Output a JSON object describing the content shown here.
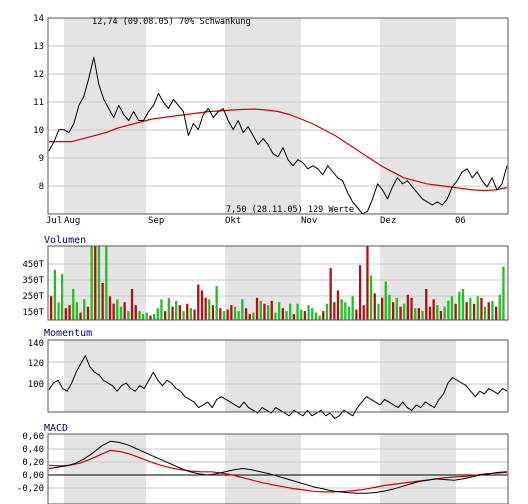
{
  "colors": {
    "price": "#000000",
    "average": "#d40000",
    "volume_up": "#20c020",
    "volume_down": "#b01010",
    "band": "#e4e4e4",
    "grid": "#c8c8c8",
    "frame": "#555555",
    "title": "#000066",
    "macd_signal": "#d40000"
  },
  "chart_data": [
    {
      "type": "line",
      "panel": "price",
      "annotations": {
        "high": "12,74 (09.08.05) 70% Schwankung",
        "low": "7,50 (28.11.05) 129 Werte"
      },
      "x_labels": [
        "Jul",
        "Aug",
        "Sep",
        "Okt",
        "Nov",
        "Dez",
        "06"
      ],
      "y_ticks": [
        "14",
        "13",
        "12",
        "11",
        "10",
        "9",
        "8"
      ],
      "ylim": [
        7.5,
        14
      ],
      "grid": true,
      "series": [
        {
          "values": [
            9.6,
            9.9,
            10.3,
            10.3,
            10.2,
            10.5,
            11.1,
            11.4,
            12.0,
            12.7,
            11.8,
            11.3,
            11.0,
            10.7,
            11.1,
            10.8,
            10.6,
            10.9,
            10.6,
            10.6,
            10.9,
            11.1,
            11.5,
            11.2,
            11.0,
            11.3,
            11.1,
            10.9,
            10.1,
            10.5,
            10.3,
            10.8,
            11.0,
            10.7,
            10.9,
            11.0,
            10.6,
            10.3,
            10.6,
            10.2,
            10.4,
            10.1,
            9.8,
            10.0,
            9.8,
            9.5,
            9.4,
            9.7,
            9.3,
            9.1,
            9.3,
            9.2,
            9.0,
            9.1,
            9.0,
            8.8,
            9.1,
            8.9,
            8.7,
            8.6,
            8.2,
            7.9,
            7.7,
            7.5,
            7.6,
            8.0,
            8.5,
            8.3,
            8.0,
            8.4,
            8.7,
            8.5,
            8.6,
            8.4,
            8.2,
            8.0,
            7.9,
            7.8,
            7.9,
            7.8,
            8.0,
            8.4,
            8.6,
            8.9,
            9.0,
            8.7,
            8.9,
            8.6,
            8.4,
            8.7,
            8.3,
            8.5,
            9.1
          ]
        },
        {
          "values": [
            9.9,
            9.9,
            9.9,
            10.0,
            10.1,
            10.2,
            10.35,
            10.45,
            10.55,
            10.65,
            10.7,
            10.75,
            10.8,
            10.85,
            10.9,
            10.92,
            10.95,
            10.97,
            10.98,
            10.95,
            10.9,
            10.8,
            10.65,
            10.5,
            10.3,
            10.1,
            9.85,
            9.6,
            9.35,
            9.1,
            8.9,
            8.7,
            8.6,
            8.5,
            8.45,
            8.4,
            8.35,
            8.3,
            8.28,
            8.3,
            8.38
          ]
        }
      ]
    },
    {
      "type": "bar",
      "panel": "volume",
      "title": "Volumen",
      "y_ticks": [
        "450T",
        "350T",
        "250T",
        "150T"
      ],
      "ylim": [
        0,
        500
      ],
      "bars": [
        {
          "v": 160,
          "c": "down"
        },
        {
          "v": 340,
          "c": "up"
        },
        {
          "v": 120,
          "c": "up"
        },
        {
          "v": 310,
          "c": "up"
        },
        {
          "v": 80,
          "c": "down"
        },
        {
          "v": 100,
          "c": "down"
        },
        {
          "v": 210,
          "c": "up"
        },
        {
          "v": 120,
          "c": "up"
        },
        {
          "v": 50,
          "c": "down"
        },
        {
          "v": 140,
          "c": "up"
        },
        {
          "v": 90,
          "c": "down"
        },
        {
          "v": 500,
          "c": "up"
        },
        {
          "v": 500,
          "c": "down"
        },
        {
          "v": 500,
          "c": "up"
        },
        {
          "v": 250,
          "c": "down"
        },
        {
          "v": 500,
          "c": "up"
        },
        {
          "v": 160,
          "c": "down"
        },
        {
          "v": 110,
          "c": "down"
        },
        {
          "v": 140,
          "c": "up"
        },
        {
          "v": 90,
          "c": "up"
        },
        {
          "v": 120,
          "c": "down"
        },
        {
          "v": 60,
          "c": "up"
        },
        {
          "v": 210,
          "c": "down"
        },
        {
          "v": 100,
          "c": "down"
        },
        {
          "v": 60,
          "c": "up"
        },
        {
          "v": 40,
          "c": "up"
        },
        {
          "v": 50,
          "c": "up"
        },
        {
          "v": 30,
          "c": "down"
        },
        {
          "v": 40,
          "c": "up"
        },
        {
          "v": 80,
          "c": "up"
        },
        {
          "v": 140,
          "c": "up"
        },
        {
          "v": 60,
          "c": "down"
        },
        {
          "v": 150,
          "c": "up"
        },
        {
          "v": 90,
          "c": "down"
        },
        {
          "v": 130,
          "c": "up"
        },
        {
          "v": 100,
          "c": "down"
        },
        {
          "v": 60,
          "c": "up"
        },
        {
          "v": 110,
          "c": "down"
        },
        {
          "v": 80,
          "c": "up"
        },
        {
          "v": 70,
          "c": "down"
        },
        {
          "v": 240,
          "c": "down"
        },
        {
          "v": 200,
          "c": "down"
        },
        {
          "v": 150,
          "c": "down"
        },
        {
          "v": 140,
          "c": "up"
        },
        {
          "v": 100,
          "c": "down"
        },
        {
          "v": 230,
          "c": "up"
        },
        {
          "v": 80,
          "c": "down"
        },
        {
          "v": 60,
          "c": "up"
        },
        {
          "v": 70,
          "c": "down"
        },
        {
          "v": 100,
          "c": "down"
        },
        {
          "v": 90,
          "c": "up"
        },
        {
          "v": 60,
          "c": "up"
        },
        {
          "v": 140,
          "c": "up"
        },
        {
          "v": 80,
          "c": "down"
        },
        {
          "v": 40,
          "c": "down"
        },
        {
          "v": 50,
          "c": "up"
        },
        {
          "v": 150,
          "c": "down"
        },
        {
          "v": 130,
          "c": "up"
        },
        {
          "v": 110,
          "c": "down"
        },
        {
          "v": 100,
          "c": "up"
        },
        {
          "v": 130,
          "c": "down"
        },
        {
          "v": 50,
          "c": "up"
        },
        {
          "v": 120,
          "c": "up"
        },
        {
          "v": 80,
          "c": "down"
        },
        {
          "v": 60,
          "c": "up"
        },
        {
          "v": 110,
          "c": "up"
        },
        {
          "v": 40,
          "c": "down"
        },
        {
          "v": 110,
          "c": "up"
        },
        {
          "v": 70,
          "c": "up"
        },
        {
          "v": 60,
          "c": "down"
        },
        {
          "v": 100,
          "c": "up"
        },
        {
          "v": 80,
          "c": "up"
        },
        {
          "v": 50,
          "c": "up"
        },
        {
          "v": 30,
          "c": "up"
        },
        {
          "v": 60,
          "c": "down"
        },
        {
          "v": 110,
          "c": "up"
        },
        {
          "v": 350,
          "c": "down"
        },
        {
          "v": 120,
          "c": "down"
        },
        {
          "v": 200,
          "c": "down"
        },
        {
          "v": 140,
          "c": "up"
        },
        {
          "v": 120,
          "c": "up"
        },
        {
          "v": 90,
          "c": "up"
        },
        {
          "v": 160,
          "c": "up"
        },
        {
          "v": 70,
          "c": "down"
        },
        {
          "v": 370,
          "c": "down"
        },
        {
          "v": 100,
          "c": "down"
        },
        {
          "v": 500,
          "c": "down"
        },
        {
          "v": 300,
          "c": "up"
        },
        {
          "v": 180,
          "c": "down"
        },
        {
          "v": 110,
          "c": "up"
        },
        {
          "v": 150,
          "c": "down"
        },
        {
          "v": 260,
          "c": "up"
        },
        {
          "v": 170,
          "c": "up"
        },
        {
          "v": 120,
          "c": "down"
        },
        {
          "v": 150,
          "c": "up"
        },
        {
          "v": 90,
          "c": "down"
        },
        {
          "v": 110,
          "c": "up"
        },
        {
          "v": 170,
          "c": "down"
        },
        {
          "v": 150,
          "c": "down"
        },
        {
          "v": 80,
          "c": "up"
        },
        {
          "v": 80,
          "c": "down"
        },
        {
          "v": 60,
          "c": "up"
        },
        {
          "v": 210,
          "c": "down"
        },
        {
          "v": 90,
          "c": "down"
        },
        {
          "v": 140,
          "c": "down"
        },
        {
          "v": 100,
          "c": "up"
        },
        {
          "v": 60,
          "c": "down"
        },
        {
          "v": 90,
          "c": "up"
        },
        {
          "v": 130,
          "c": "up"
        },
        {
          "v": 160,
          "c": "up"
        },
        {
          "v": 110,
          "c": "down"
        },
        {
          "v": 190,
          "c": "up"
        },
        {
          "v": 210,
          "c": "up"
        },
        {
          "v": 120,
          "c": "down"
        },
        {
          "v": 150,
          "c": "up"
        },
        {
          "v": 110,
          "c": "down"
        },
        {
          "v": 160,
          "c": "up"
        },
        {
          "v": 150,
          "c": "down"
        },
        {
          "v": 90,
          "c": "up"
        },
        {
          "v": 120,
          "c": "down"
        },
        {
          "v": 130,
          "c": "up"
        },
        {
          "v": 90,
          "c": "down"
        },
        {
          "v": 170,
          "c": "up"
        },
        {
          "v": 360,
          "c": "up"
        }
      ]
    },
    {
      "type": "line",
      "panel": "momentum",
      "title": "Momentum",
      "y_ticks": [
        "140",
        "120",
        "100"
      ],
      "ylim": [
        80,
        140
      ],
      "grid": true,
      "series": [
        {
          "values": [
            105,
            110,
            112,
            106,
            104,
            110,
            118,
            124,
            130,
            122,
            118,
            116,
            112,
            110,
            108,
            104,
            108,
            110,
            106,
            104,
            108,
            106,
            112,
            118,
            112,
            108,
            112,
            110,
            106,
            104,
            100,
            98,
            96,
            92,
            94,
            96,
            92,
            98,
            100,
            98,
            96,
            94,
            92,
            96,
            92,
            90,
            88,
            92,
            90,
            88,
            92,
            90,
            88,
            86,
            90,
            88,
            86,
            90,
            86,
            88,
            90,
            86,
            88,
            84,
            86,
            90,
            88,
            86,
            92,
            96,
            100,
            98,
            96,
            94,
            98,
            96,
            94,
            92,
            96,
            92,
            90,
            94,
            92,
            96,
            94,
            92,
            98,
            102,
            110,
            114,
            112,
            110,
            108,
            104,
            100,
            104,
            102,
            106,
            104,
            102,
            106,
            104
          ]
        }
      ]
    },
    {
      "type": "line",
      "panel": "macd",
      "title": "MACD",
      "y_ticks": [
        "0,60",
        "0,40",
        "0,20",
        "0,00",
        "-0,20"
      ],
      "ylim": [
        -0.3,
        0.65
      ],
      "grid": true,
      "series": [
        {
          "values": [
            0.1,
            0.12,
            0.14,
            0.18,
            0.25,
            0.34,
            0.45,
            0.52,
            0.5,
            0.46,
            0.4,
            0.34,
            0.28,
            0.22,
            0.16,
            0.1,
            0.05,
            0.02,
            0.0,
            0.02,
            0.05,
            0.08,
            0.1,
            0.08,
            0.05,
            0.02,
            -0.02,
            -0.06,
            -0.1,
            -0.14,
            -0.18,
            -0.21,
            -0.24,
            -0.26,
            -0.27,
            -0.28,
            -0.28,
            -0.27,
            -0.25,
            -0.22,
            -0.18,
            -0.14,
            -0.1,
            -0.08,
            -0.06,
            -0.07,
            -0.08,
            -0.06,
            -0.03,
            0.0,
            0.02,
            0.04,
            0.05
          ]
        },
        {
          "values": [
            0.15,
            0.14,
            0.15,
            0.18,
            0.24,
            0.31,
            0.38,
            0.36,
            0.32,
            0.26,
            0.2,
            0.15,
            0.11,
            0.08,
            0.06,
            0.05,
            0.05,
            0.03,
            0.0,
            -0.04,
            -0.08,
            -0.12,
            -0.15,
            -0.18,
            -0.21,
            -0.23,
            -0.25,
            -0.26,
            -0.26,
            -0.25,
            -0.24,
            -0.22,
            -0.19,
            -0.16,
            -0.14,
            -0.12,
            -0.1,
            -0.08,
            -0.06,
            -0.04,
            -0.03,
            -0.02,
            0.0,
            0.02,
            0.03,
            0.04
          ]
        }
      ]
    }
  ]
}
